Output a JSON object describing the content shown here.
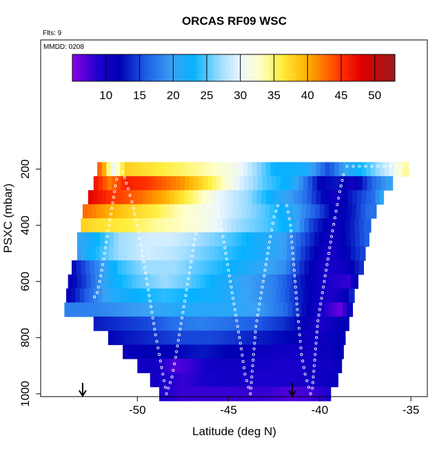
{
  "chart_data": {
    "type": "heatmap",
    "title": "ORCAS RF09 WSC",
    "header_left": "Flts: 9",
    "annotation": "MMDD: 0208",
    "xlabel": "Latitude (deg N)",
    "ylabel": "PSXC (mbar)",
    "xlim": [
      -55.3,
      -34.1
    ],
    "ylim": [
      1010,
      -260
    ],
    "x_ticks": [
      -50,
      -45,
      -40,
      -35
    ],
    "x_tick_labels": [
      "-50",
      "-45",
      "-40",
      "-35"
    ],
    "y_ticks": [
      200,
      400,
      600,
      800,
      1000
    ],
    "y_tick_labels": [
      "200",
      "400",
      "600",
      "800",
      "1000"
    ],
    "colorbar": {
      "range": [
        5,
        53
      ],
      "ticks": [
        10,
        15,
        20,
        25,
        30,
        35,
        40,
        45,
        50
      ],
      "tick_labels": [
        "10",
        "15",
        "20",
        "25",
        "30",
        "35",
        "40",
        "45",
        "50"
      ],
      "stops": [
        {
          "v": 5,
          "c": "#8a00e6"
        },
        {
          "v": 9,
          "c": "#1a00cc"
        },
        {
          "v": 12,
          "c": "#0000b4"
        },
        {
          "v": 16,
          "c": "#1f5fe6"
        },
        {
          "v": 20,
          "c": "#3aa2f5"
        },
        {
          "v": 23,
          "c": "#05b2ff"
        },
        {
          "v": 27,
          "c": "#9fdcff"
        },
        {
          "v": 30,
          "c": "#eaf6ff"
        },
        {
          "v": 33,
          "c": "#ffffc8"
        },
        {
          "v": 36,
          "c": "#ffef40"
        },
        {
          "v": 40,
          "c": "#ffb000"
        },
        {
          "v": 45,
          "c": "#ff3000"
        },
        {
          "v": 48,
          "c": "#e00000"
        },
        {
          "v": 53,
          "c": "#9b1c1c"
        }
      ]
    },
    "rows": [
      {
        "p": 200,
        "x0": -52.2,
        "x1": -35.1,
        "v": [
          [
            -52.2,
            44
          ],
          [
            -51.8,
            40
          ],
          [
            -51.4,
            30
          ],
          [
            -50.6,
            38
          ],
          [
            -48.5,
            36
          ],
          [
            -46.5,
            34
          ],
          [
            -44.5,
            31
          ],
          [
            -43.5,
            27
          ],
          [
            -42.5,
            23
          ],
          [
            -40.8,
            22
          ],
          [
            -39.5,
            15
          ],
          [
            -38.7,
            20
          ],
          [
            -37.5,
            24
          ],
          [
            -36.0,
            30
          ],
          [
            -35.3,
            34
          ]
        ]
      },
      {
        "p": 250,
        "x0": -52.4,
        "x1": -36.0,
        "v": [
          [
            -52.4,
            47
          ],
          [
            -51.5,
            42
          ],
          [
            -50.6,
            46
          ],
          [
            -49.5,
            45
          ],
          [
            -47.5,
            41
          ],
          [
            -46.0,
            36
          ],
          [
            -44.5,
            30
          ],
          [
            -43.0,
            25
          ],
          [
            -41.5,
            22
          ],
          [
            -40.0,
            12
          ],
          [
            -39.0,
            13
          ],
          [
            -38.2,
            10
          ],
          [
            -37.0,
            17
          ],
          [
            -36.2,
            20
          ]
        ]
      },
      {
        "p": 300,
        "x0": -52.7,
        "x1": -36.5,
        "v": [
          [
            -52.7,
            48
          ],
          [
            -51.5,
            45
          ],
          [
            -50.0,
            43
          ],
          [
            -48.5,
            40
          ],
          [
            -47.0,
            35
          ],
          [
            -45.5,
            30
          ],
          [
            -44.0,
            27
          ],
          [
            -42.5,
            22
          ],
          [
            -41.0,
            18
          ],
          [
            -40.0,
            13
          ],
          [
            -39.2,
            10
          ],
          [
            -38.0,
            14
          ],
          [
            -37.0,
            17
          ],
          [
            -36.6,
            21
          ]
        ]
      },
      {
        "p": 350,
        "x0": -53.0,
        "x1": -36.9,
        "v": [
          [
            -53.0,
            43
          ],
          [
            -52.0,
            41
          ],
          [
            -50.5,
            38
          ],
          [
            -49.0,
            36
          ],
          [
            -47.5,
            33
          ],
          [
            -46.0,
            31
          ],
          [
            -44.5,
            28
          ],
          [
            -43.0,
            25
          ],
          [
            -41.5,
            21
          ],
          [
            -40.0,
            15
          ],
          [
            -39.2,
            11
          ],
          [
            -38.2,
            13
          ],
          [
            -37.3,
            17
          ]
        ]
      },
      {
        "p": 400,
        "x0": -53.1,
        "x1": -37.2,
        "v": [
          [
            -53.1,
            38
          ],
          [
            -52.2,
            37
          ],
          [
            -50.5,
            36
          ],
          [
            -49.0,
            34
          ],
          [
            -47.5,
            33
          ],
          [
            -46.0,
            31
          ],
          [
            -44.5,
            27
          ],
          [
            -43.0,
            25
          ],
          [
            -41.5,
            22
          ],
          [
            -40.5,
            15
          ],
          [
            -39.3,
            10
          ],
          [
            -38.3,
            13
          ],
          [
            -37.5,
            16
          ]
        ]
      },
      {
        "p": 450,
        "x0": -53.3,
        "x1": -37.3,
        "v": [
          [
            -53.3,
            20
          ],
          [
            -52.5,
            22
          ],
          [
            -51.0,
            27
          ],
          [
            -49.5,
            29
          ],
          [
            -48.0,
            29
          ],
          [
            -46.5,
            27
          ],
          [
            -45.0,
            25
          ],
          [
            -43.5,
            22
          ],
          [
            -42.0,
            20
          ],
          [
            -40.8,
            15
          ],
          [
            -39.5,
            10
          ],
          [
            -38.3,
            13
          ],
          [
            -37.5,
            16
          ]
        ]
      },
      {
        "p": 500,
        "x0": -53.3,
        "x1": -37.5,
        "v": [
          [
            -53.3,
            19
          ],
          [
            -52.5,
            23
          ],
          [
            -51.0,
            27
          ],
          [
            -49.5,
            29
          ],
          [
            -48.0,
            28
          ],
          [
            -46.5,
            26
          ],
          [
            -45.0,
            24
          ],
          [
            -43.5,
            22
          ],
          [
            -42.0,
            20
          ],
          [
            -40.8,
            14
          ],
          [
            -39.5,
            9
          ],
          [
            -38.5,
            12
          ],
          [
            -37.6,
            15
          ]
        ]
      },
      {
        "p": 550,
        "x0": -53.6,
        "x1": -37.6,
        "v": [
          [
            -53.6,
            12
          ],
          [
            -52.5,
            17
          ],
          [
            -51.0,
            24
          ],
          [
            -49.5,
            27
          ],
          [
            -48.0,
            27
          ],
          [
            -46.5,
            25
          ],
          [
            -45.0,
            23
          ],
          [
            -43.5,
            21
          ],
          [
            -42.0,
            19
          ],
          [
            -40.8,
            13
          ],
          [
            -39.5,
            9
          ],
          [
            -38.5,
            11
          ],
          [
            -37.7,
            14
          ]
        ]
      },
      {
        "p": 600,
        "x0": -53.8,
        "x1": -37.9,
        "v": [
          [
            -53.8,
            11
          ],
          [
            -52.8,
            15
          ],
          [
            -51.5,
            22
          ],
          [
            -50.0,
            25
          ],
          [
            -48.5,
            27
          ],
          [
            -47.0,
            25
          ],
          [
            -45.5,
            22
          ],
          [
            -44.0,
            20
          ],
          [
            -42.5,
            18
          ],
          [
            -41.0,
            13
          ],
          [
            -39.5,
            9
          ],
          [
            -38.4,
            8
          ],
          [
            -38.0,
            12
          ]
        ]
      },
      {
        "p": 650,
        "x0": -53.9,
        "x1": -38.1,
        "v": [
          [
            -53.9,
            11
          ],
          [
            -52.8,
            16
          ],
          [
            -51.5,
            21
          ],
          [
            -50.0,
            23
          ],
          [
            -48.5,
            24
          ],
          [
            -47.0,
            23
          ],
          [
            -45.5,
            22
          ],
          [
            -44.0,
            20
          ],
          [
            -42.5,
            18
          ],
          [
            -41.0,
            13
          ],
          [
            -39.5,
            9
          ],
          [
            -38.6,
            11
          ],
          [
            -38.2,
            14
          ]
        ]
      },
      {
        "p": 700,
        "x0": -54.0,
        "x1": -38.2,
        "v": [
          [
            -54.0,
            18
          ],
          [
            -52.5,
            18
          ],
          [
            -51.0,
            19
          ],
          [
            -49.5,
            20
          ],
          [
            -48.0,
            21
          ],
          [
            -46.5,
            21
          ],
          [
            -45.0,
            21
          ],
          [
            -43.5,
            20
          ],
          [
            -42.0,
            17
          ],
          [
            -41.0,
            13
          ],
          [
            -39.5,
            8
          ],
          [
            -38.8,
            6
          ],
          [
            -38.4,
            11
          ]
        ]
      },
      {
        "p": 750,
        "x0": -52.4,
        "x1": -38.4,
        "v": [
          [
            -52.4,
            13
          ],
          [
            -51.0,
            14
          ],
          [
            -49.5,
            15
          ],
          [
            -48.0,
            17
          ],
          [
            -46.5,
            18
          ],
          [
            -45.0,
            17
          ],
          [
            -43.5,
            16
          ],
          [
            -42.0,
            14
          ],
          [
            -41.0,
            12
          ],
          [
            -40.0,
            9
          ],
          [
            -39.2,
            11
          ],
          [
            -38.6,
            12
          ]
        ]
      },
      {
        "p": 800,
        "x0": -51.6,
        "x1": -38.6,
        "v": [
          [
            -51.6,
            12
          ],
          [
            -50.5,
            13
          ],
          [
            -49.0,
            14
          ],
          [
            -47.5,
            15
          ],
          [
            -46.0,
            15
          ],
          [
            -44.5,
            14
          ],
          [
            -43.0,
            13
          ],
          [
            -41.5,
            12
          ],
          [
            -40.5,
            10
          ],
          [
            -39.5,
            11
          ],
          [
            -38.8,
            12
          ]
        ]
      },
      {
        "p": 850,
        "x0": -50.8,
        "x1": -38.7,
        "v": [
          [
            -50.8,
            11
          ],
          [
            -49.5,
            12
          ],
          [
            -48.0,
            12
          ],
          [
            -46.5,
            13
          ],
          [
            -45.0,
            12
          ],
          [
            -43.5,
            11
          ],
          [
            -42.0,
            10
          ],
          [
            -40.5,
            10
          ],
          [
            -39.5,
            11
          ],
          [
            -38.9,
            12
          ]
        ]
      },
      {
        "p": 900,
        "x0": -50.0,
        "x1": -38.8,
        "v": [
          [
            -50.0,
            10
          ],
          [
            -49.0,
            10
          ],
          [
            -48.0,
            7
          ],
          [
            -47.0,
            8
          ],
          [
            -46.0,
            10
          ],
          [
            -45.0,
            10
          ],
          [
            -43.5,
            10
          ],
          [
            -42.0,
            9
          ],
          [
            -40.5,
            10
          ],
          [
            -39.5,
            10
          ],
          [
            -39.0,
            11
          ]
        ]
      },
      {
        "p": 950,
        "x0": -49.3,
        "x1": -39.0,
        "v": [
          [
            -49.3,
            10
          ],
          [
            -48.5,
            9
          ],
          [
            -47.5,
            8
          ],
          [
            -46.5,
            9
          ],
          [
            -45.0,
            10
          ],
          [
            -43.5,
            9
          ],
          [
            -42.0,
            9
          ],
          [
            -40.5,
            10
          ],
          [
            -39.3,
            11
          ]
        ]
      },
      {
        "p": 1000,
        "x0": -48.8,
        "x1": -39.4,
        "v": [
          [
            -48.8,
            9
          ],
          [
            -47.5,
            8
          ],
          [
            -46.0,
            8
          ],
          [
            -44.5,
            8
          ],
          [
            -43.0,
            8
          ],
          [
            -41.5,
            7
          ],
          [
            -40.2,
            8
          ],
          [
            -39.5,
            9
          ]
        ]
      }
    ],
    "flight_track": [
      [
        -35.1,
        190
      ],
      [
        -38.5,
        190
      ],
      [
        -38.7,
        220
      ],
      [
        -38.9,
        280
      ],
      [
        -39.1,
        350
      ],
      [
        -39.3,
        420
      ],
      [
        -39.5,
        500
      ],
      [
        -39.7,
        580
      ],
      [
        -39.9,
        660
      ],
      [
        -40.1,
        740
      ],
      [
        -40.2,
        820
      ],
      [
        -40.3,
        900
      ],
      [
        -40.4,
        980
      ],
      [
        -40.5,
        1000
      ],
      [
        -40.8,
        930
      ],
      [
        -41.0,
        860
      ],
      [
        -41.1,
        790
      ],
      [
        -41.2,
        720
      ],
      [
        -41.3,
        640
      ],
      [
        -41.4,
        560
      ],
      [
        -41.5,
        480
      ],
      [
        -41.6,
        400
      ],
      [
        -41.8,
        330
      ],
      [
        -42.3,
        330
      ],
      [
        -42.5,
        370
      ],
      [
        -42.7,
        440
      ],
      [
        -42.9,
        520
      ],
      [
        -43.1,
        600
      ],
      [
        -43.3,
        680
      ],
      [
        -43.5,
        760
      ],
      [
        -43.6,
        840
      ],
      [
        -43.7,
        920
      ],
      [
        -43.8,
        1000
      ],
      [
        -44.1,
        930
      ],
      [
        -44.3,
        840
      ],
      [
        -44.5,
        760
      ],
      [
        -44.7,
        680
      ],
      [
        -44.9,
        600
      ],
      [
        -45.1,
        520
      ],
      [
        -45.3,
        440
      ],
      [
        -45.5,
        370
      ],
      [
        -45.6,
        330
      ],
      [
        -46.5,
        330
      ],
      [
        -46.7,
        390
      ],
      [
        -46.9,
        470
      ],
      [
        -47.1,
        550
      ],
      [
        -47.3,
        630
      ],
      [
        -47.5,
        710
      ],
      [
        -47.7,
        790
      ],
      [
        -47.9,
        870
      ],
      [
        -48.1,
        940
      ],
      [
        -48.4,
        1000
      ],
      [
        -48.6,
        930
      ],
      [
        -48.8,
        860
      ],
      [
        -49.0,
        790
      ],
      [
        -49.2,
        710
      ],
      [
        -49.4,
        630
      ],
      [
        -49.6,
        550
      ],
      [
        -49.8,
        470
      ],
      [
        -50.0,
        400
      ],
      [
        -50.2,
        340
      ],
      [
        -50.5,
        270
      ],
      [
        -50.8,
        210
      ],
      [
        -51.0,
        190
      ],
      [
        -51.2,
        260
      ],
      [
        -51.4,
        340
      ],
      [
        -51.6,
        420
      ],
      [
        -51.8,
        500
      ],
      [
        -52.0,
        580
      ],
      [
        -52.2,
        640
      ],
      [
        -52.5,
        670
      ]
    ],
    "arrows_x": [
      -53.0,
      -41.5
    ]
  }
}
